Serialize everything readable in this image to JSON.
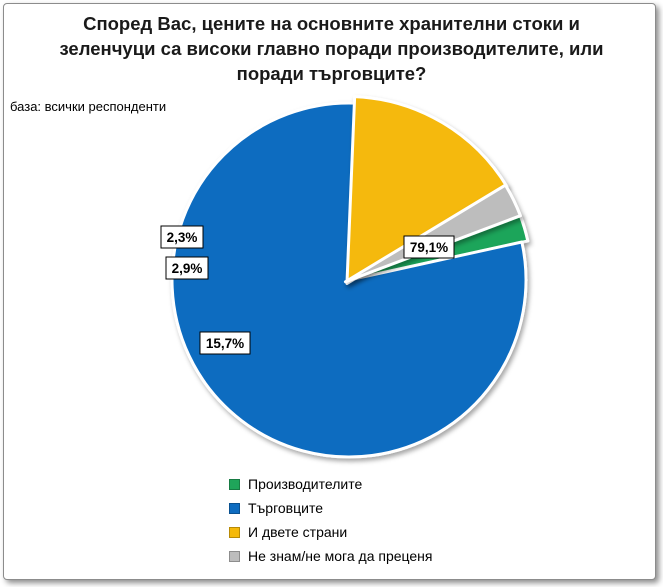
{
  "chart_data": {
    "type": "pie",
    "title_lines": [
      "Според Вас, цените на основните хранителни стоки и",
      "зеленчуци са високи главно поради производителите, или",
      "поради търговците?"
    ],
    "subtitle": "база: всички респонденти",
    "slices": [
      {
        "name": "Производителите",
        "value": 2.3,
        "label": "2,3%",
        "color": "#1fa55a"
      },
      {
        "name": "Търговците",
        "value": 79.1,
        "label": "79,1%",
        "color": "#0e6cc0"
      },
      {
        "name": "И двете страни",
        "value": 15.7,
        "label": "15,7%",
        "color": "#f5b90a"
      },
      {
        "name": "Не знам/не мога да преценя",
        "value": 2.9,
        "label": "2,9%",
        "color": "#bdbdbd"
      }
    ],
    "exploded_slice": "Търговците",
    "legend_position": "bottom"
  }
}
